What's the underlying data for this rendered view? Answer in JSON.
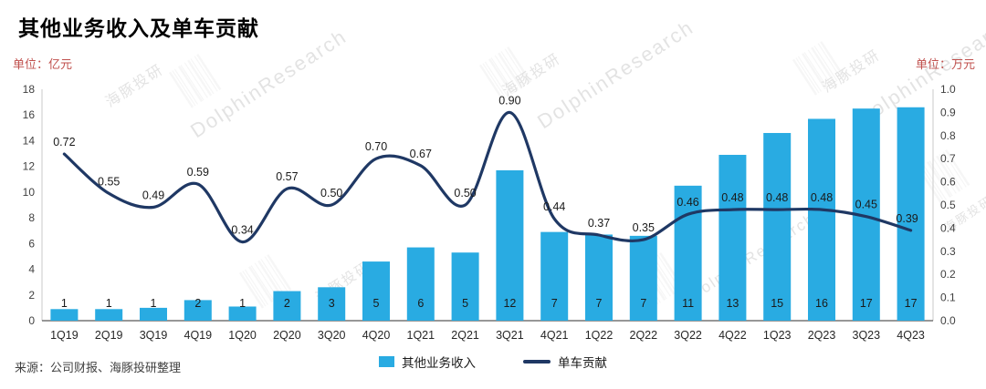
{
  "title": "其他业务收入及单车贡献",
  "unit_left": "单位：亿元",
  "unit_right": "单位：万元",
  "source": "来源：公司财报、海豚投研整理",
  "watermark": {
    "cn": "海豚投研",
    "en": "DolphinResearch"
  },
  "legend": [
    {
      "label": "其他业务收入",
      "type": "bar"
    },
    {
      "label": "单车贡献",
      "type": "line"
    }
  ],
  "colors": {
    "bar": "#29ABE2",
    "line": "#1F3864",
    "axis_text": "#404040",
    "x_label_text": "#262626",
    "data_label_text": "#1a1a1a",
    "unit_text": "#C0504D",
    "axis_line_bottom": "#595959",
    "axis_line_side": "#C9C9C9",
    "watermark": "#808080"
  },
  "chart_data": {
    "type": "bar+line",
    "title": "其他业务收入及单车贡献",
    "categories": [
      "1Q19",
      "2Q19",
      "3Q19",
      "4Q19",
      "1Q20",
      "2Q20",
      "3Q20",
      "4Q20",
      "1Q21",
      "2Q21",
      "3Q21",
      "4Q21",
      "1Q22",
      "2Q22",
      "3Q22",
      "4Q22",
      "1Q23",
      "2Q23",
      "3Q23",
      "4Q23"
    ],
    "series": [
      {
        "name": "其他业务收入",
        "type": "bar",
        "axis": "left",
        "values": [
          0.9,
          0.9,
          1.0,
          1.6,
          1.1,
          2.3,
          2.6,
          4.6,
          5.7,
          5.3,
          11.7,
          6.9,
          6.7,
          6.6,
          10.5,
          12.9,
          14.6,
          15.7,
          16.5,
          16.6
        ],
        "labels": [
          "1",
          "1",
          "1",
          "2",
          "1",
          "2",
          "3",
          "5",
          "6",
          "5",
          "12",
          "7",
          "7",
          "7",
          "11",
          "13",
          "15",
          "16",
          "17",
          "17"
        ]
      },
      {
        "name": "单车贡献",
        "type": "line",
        "axis": "right",
        "values": [
          0.72,
          0.55,
          0.49,
          0.59,
          0.34,
          0.57,
          0.5,
          0.7,
          0.67,
          0.5,
          0.9,
          0.44,
          0.37,
          0.35,
          0.46,
          0.48,
          0.48,
          0.48,
          0.45,
          0.39
        ],
        "labels": [
          "0.72",
          "0.55",
          "0.49",
          "0.59",
          "0.34",
          "0.57",
          "0.50",
          "0.70",
          "0.67",
          "0.50",
          "0.90",
          "0.44",
          "0.37",
          "0.35",
          "0.46",
          "0.48",
          "0.48",
          "0.48",
          "0.45",
          "0.39"
        ]
      }
    ],
    "left_axis": {
      "min": 0,
      "max": 18,
      "step": 2,
      "unit": "亿元"
    },
    "right_axis": {
      "min": 0,
      "max": 1.0,
      "step": 0.1,
      "unit": "万元"
    },
    "grid": false,
    "legend_position": "bottom"
  }
}
